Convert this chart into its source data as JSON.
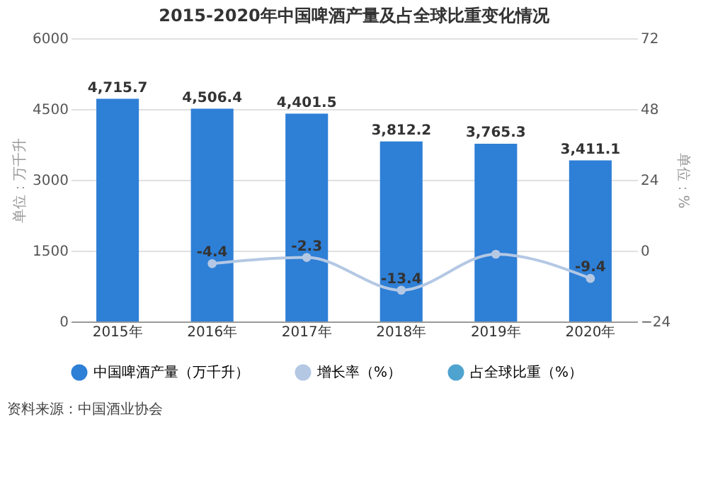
{
  "chart_data": {
    "type": "bar",
    "title": "2015-2020年中国啤酒产量及占全球比重变化情况",
    "categories": [
      "2015年",
      "2016年",
      "2017年",
      "2018年",
      "2019年",
      "2020年"
    ],
    "series": [
      {
        "name": "中国啤酒产量（万千升）",
        "color": "#2e7fd6",
        "values": [
          4715.7,
          4506.4,
          4401.5,
          3812.2,
          3765.3,
          3411.1
        ],
        "value_labels": [
          "4,715.7",
          "4,506.4",
          "4,401.5",
          "3,812.2",
          "3,765.3",
          "3,411.1"
        ]
      },
      {
        "name": "增长率（%）",
        "type": "line",
        "axis": "y2",
        "color": "#b4c8e4",
        "values": [
          null,
          -4.4,
          -2.3,
          -13.4,
          -1.2,
          -9.4
        ],
        "value_labels": [
          null,
          "-4.4",
          "-2.3",
          "-13.4",
          null,
          "-9.4"
        ]
      },
      {
        "name": "占全球比重（%）",
        "type": "line",
        "axis": "y2",
        "color": "#4fa3cf",
        "values": [
          null,
          null,
          null,
          null,
          null,
          null
        ]
      }
    ],
    "ylabel": "单位：万千升",
    "y2label": "单位：%",
    "ylim": [
      0,
      6000
    ],
    "yticks": [
      0,
      1500,
      3000,
      4500,
      6000
    ],
    "y2lim": [
      -24,
      72
    ],
    "y2ticks": [
      -24,
      0,
      24,
      48,
      72
    ],
    "grid": "y",
    "legend": "bottom",
    "marker": "circle",
    "annotations": [
      "资料来源：中国酒业协会"
    ]
  }
}
